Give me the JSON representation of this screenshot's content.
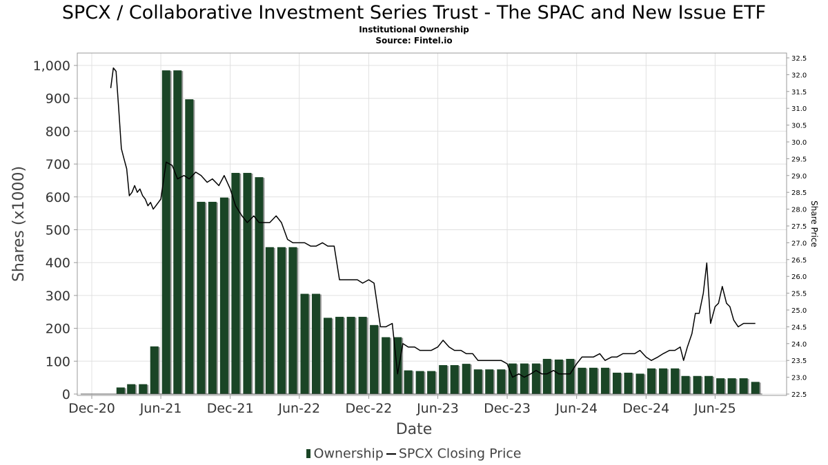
{
  "title": "SPCX / Collaborative Investment Series Trust - The SPAC and New Issue ETF",
  "subtitle": "Institutional Ownership",
  "source": "Source: Fintel.io",
  "colors": {
    "bar": "#1a4526",
    "bar_shadow": "#999999",
    "line": "#000000",
    "grid": "#e0e0e0"
  },
  "chart_data": {
    "type": "bar",
    "title": "SPCX / Collaborative Investment Series Trust - The SPAC and New Issue ETF",
    "xlabel": "Date",
    "ylabel": "Shares (x1000)",
    "y2label": "Share Price",
    "ylim": [
      0,
      1000
    ],
    "y2lim": [
      22.5,
      32.5
    ],
    "legend_position": "bottom-center",
    "grid": true,
    "x_ticks": [
      "Dec-20",
      "Jun-21",
      "Dec-21",
      "Jun-22",
      "Dec-22",
      "Jun-23",
      "Dec-23",
      "Jun-24",
      "Dec-24",
      "Jun-25"
    ],
    "y_ticks": [
      "0",
      "100",
      "200",
      "300",
      "400",
      "500",
      "600",
      "700",
      "800",
      "900",
      "1,000"
    ],
    "y2_ticks": [
      "22.5",
      "23.0",
      "23.5",
      "24.0",
      "24.5",
      "25.0",
      "25.5",
      "26.0",
      "26.5",
      "27.0",
      "27.5",
      "28.0",
      "28.5",
      "29.0",
      "29.5",
      "30.0",
      "30.5",
      "31.0",
      "31.5",
      "32.0",
      "32.5"
    ],
    "series": [
      {
        "name": "Ownership",
        "type": "bar",
        "x": [
          "2021-02-15",
          "2021-03-15",
          "2021-04-15",
          "2021-05-15",
          "2021-06-15",
          "2021-07-15",
          "2021-08-15",
          "2021-09-15",
          "2021-10-15",
          "2021-11-15",
          "2021-12-15",
          "2022-01-15",
          "2022-02-15",
          "2022-03-15",
          "2022-04-15",
          "2022-05-15",
          "2022-06-15",
          "2022-07-15",
          "2022-08-15",
          "2022-09-15",
          "2022-10-15",
          "2022-11-15",
          "2022-12-15",
          "2023-01-15",
          "2023-02-15",
          "2023-03-15",
          "2023-04-15",
          "2023-05-15",
          "2023-06-15",
          "2023-07-15",
          "2023-08-15",
          "2023-09-15",
          "2023-10-15",
          "2023-11-15",
          "2023-12-15",
          "2024-01-15",
          "2024-02-15",
          "2024-03-15",
          "2024-04-15",
          "2024-05-15",
          "2024-06-15",
          "2024-07-15",
          "2024-08-15",
          "2024-09-15",
          "2024-10-15",
          "2024-11-15",
          "2024-12-15",
          "2025-01-15",
          "2025-02-15",
          "2025-03-15",
          "2025-04-15",
          "2025-05-15",
          "2025-06-15",
          "2025-07-15",
          "2025-08-15",
          "2025-09-15"
        ],
        "values": [
          20,
          30,
          30,
          145,
          985,
          985,
          897,
          585,
          585,
          598,
          673,
          673,
          660,
          447,
          447,
          447,
          305,
          305,
          232,
          235,
          235,
          235,
          210,
          173,
          173,
          72,
          70,
          70,
          88,
          88,
          92,
          75,
          75,
          75,
          93,
          93,
          93,
          107,
          105,
          107,
          80,
          80,
          80,
          65,
          65,
          62,
          78,
          78,
          78,
          55,
          55,
          55,
          48,
          48,
          48,
          37
        ]
      },
      {
        "name": "SPCX Closing Price",
        "type": "line",
        "x": [
          "2021-01-20",
          "2021-01-27",
          "2021-02-03",
          "2021-02-10",
          "2021-02-17",
          "2021-02-24",
          "2021-03-03",
          "2021-03-10",
          "2021-03-17",
          "2021-03-24",
          "2021-03-31",
          "2021-04-07",
          "2021-04-14",
          "2021-04-21",
          "2021-04-28",
          "2021-05-05",
          "2021-05-12",
          "2021-05-19",
          "2021-06-01",
          "2021-06-15",
          "2021-07-01",
          "2021-07-15",
          "2021-08-01",
          "2021-08-15",
          "2021-09-01",
          "2021-09-15",
          "2021-10-01",
          "2021-10-15",
          "2021-11-01",
          "2021-11-15",
          "2021-12-01",
          "2021-12-15",
          "2022-01-01",
          "2022-01-15",
          "2022-02-01",
          "2022-02-15",
          "2022-03-01",
          "2022-03-15",
          "2022-04-01",
          "2022-04-15",
          "2022-05-01",
          "2022-05-15",
          "2022-06-01",
          "2022-06-15",
          "2022-07-01",
          "2022-07-15",
          "2022-08-01",
          "2022-08-15",
          "2022-09-01",
          "2022-09-15",
          "2022-10-01",
          "2022-10-15",
          "2022-11-01",
          "2022-11-15",
          "2022-12-01",
          "2022-12-15",
          "2023-01-01",
          "2023-01-15",
          "2023-02-01",
          "2023-02-15",
          "2023-03-01",
          "2023-03-15",
          "2023-04-01",
          "2023-04-15",
          "2023-05-01",
          "2023-05-15",
          "2023-06-01",
          "2023-06-15",
          "2023-07-01",
          "2023-07-15",
          "2023-08-01",
          "2023-08-15",
          "2023-09-01",
          "2023-09-15",
          "2023-10-01",
          "2023-10-15",
          "2023-11-01",
          "2023-11-15",
          "2023-12-01",
          "2023-12-15",
          "2024-01-01",
          "2024-01-15",
          "2024-02-01",
          "2024-02-15",
          "2024-03-01",
          "2024-03-15",
          "2024-04-01",
          "2024-04-15",
          "2024-05-01",
          "2024-05-15",
          "2024-06-01",
          "2024-06-15",
          "2024-07-01",
          "2024-07-15",
          "2024-08-01",
          "2024-08-15",
          "2024-09-01",
          "2024-09-15",
          "2024-10-01",
          "2024-10-15",
          "2024-11-01",
          "2024-11-15",
          "2024-12-01",
          "2024-12-15",
          "2025-01-01",
          "2025-01-15",
          "2025-02-01",
          "2025-02-15",
          "2025-03-01",
          "2025-03-10",
          "2025-03-20",
          "2025-04-01",
          "2025-04-10",
          "2025-04-20",
          "2025-05-01",
          "2025-05-10",
          "2025-05-20",
          "2025-06-01",
          "2025-06-10",
          "2025-06-20",
          "2025-07-01",
          "2025-07-10",
          "2025-07-20",
          "2025-08-01",
          "2025-08-15",
          "2025-09-01",
          "2025-09-15"
        ],
        "values": [
          31.6,
          32.2,
          32.1,
          31.0,
          29.8,
          29.5,
          29.2,
          28.4,
          28.5,
          28.7,
          28.5,
          28.6,
          28.4,
          28.3,
          28.1,
          28.2,
          28.0,
          28.1,
          28.3,
          29.4,
          29.3,
          28.9,
          29.0,
          28.9,
          29.1,
          29.0,
          28.8,
          28.9,
          28.7,
          29.0,
          28.6,
          28.1,
          27.8,
          27.6,
          27.8,
          27.6,
          27.6,
          27.6,
          27.8,
          27.6,
          27.1,
          27.0,
          27.0,
          27.0,
          26.9,
          26.9,
          27.0,
          26.9,
          26.9,
          25.9,
          25.9,
          25.9,
          25.9,
          25.8,
          25.9,
          25.8,
          24.5,
          24.5,
          24.6,
          23.1,
          24.0,
          23.9,
          23.9,
          23.8,
          23.8,
          23.8,
          23.9,
          24.1,
          23.9,
          23.8,
          23.8,
          23.7,
          23.7,
          23.5,
          23.5,
          23.5,
          23.5,
          23.5,
          23.4,
          23.0,
          23.1,
          23.0,
          23.1,
          23.2,
          23.1,
          23.1,
          23.2,
          23.1,
          23.1,
          23.1,
          23.4,
          23.6,
          23.6,
          23.6,
          23.7,
          23.5,
          23.6,
          23.6,
          23.7,
          23.7,
          23.7,
          23.8,
          23.6,
          23.5,
          23.6,
          23.7,
          23.8,
          23.8,
          23.9,
          23.5,
          23.9,
          24.3,
          24.9,
          24.9,
          25.5,
          26.4,
          24.6,
          25.1,
          25.2,
          25.7,
          25.2,
          25.1,
          24.7,
          24.5,
          24.6,
          24.6,
          24.6
        ]
      }
    ]
  }
}
